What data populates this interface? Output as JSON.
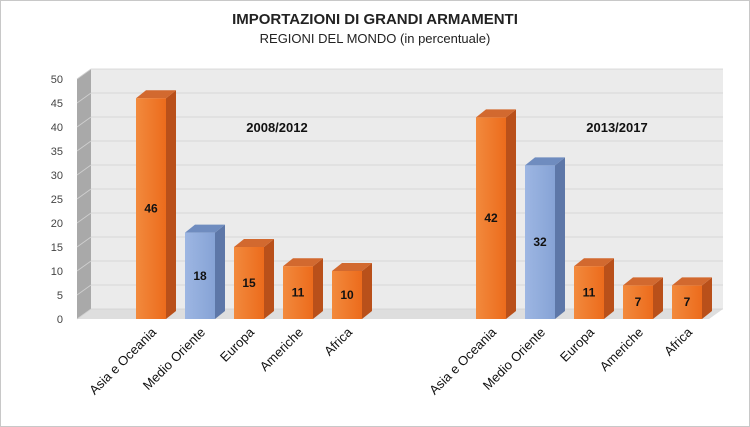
{
  "chart_data": {
    "type": "bar",
    "title": "IMPORTAZIONI DI GRANDI ARMAMENTI",
    "subtitle": "REGIONI DEL MONDO  (in percentuale)",
    "ylim": [
      0,
      50
    ],
    "yticks": [
      0,
      5,
      10,
      15,
      20,
      25,
      30,
      35,
      40,
      45,
      50
    ],
    "grid": true,
    "colors": {
      "orange": "#f07a2a",
      "blue": "#8eaadb"
    },
    "groups": [
      {
        "name": "2008/2012",
        "categories": [
          "Asia e Oceania",
          "Medio Oriente",
          "Europa",
          "Americhe",
          "Africa"
        ],
        "values": [
          46,
          18,
          15,
          11,
          10
        ],
        "colors": [
          "orange",
          "blue",
          "orange",
          "orange",
          "orange"
        ]
      },
      {
        "name": "2013/2017",
        "categories": [
          "Asia e Oceania",
          "Medio Oriente",
          "Europa",
          "Americhe",
          "Africa"
        ],
        "values": [
          42,
          32,
          11,
          7,
          7
        ],
        "colors": [
          "orange",
          "blue",
          "orange",
          "orange",
          "orange"
        ]
      }
    ]
  }
}
